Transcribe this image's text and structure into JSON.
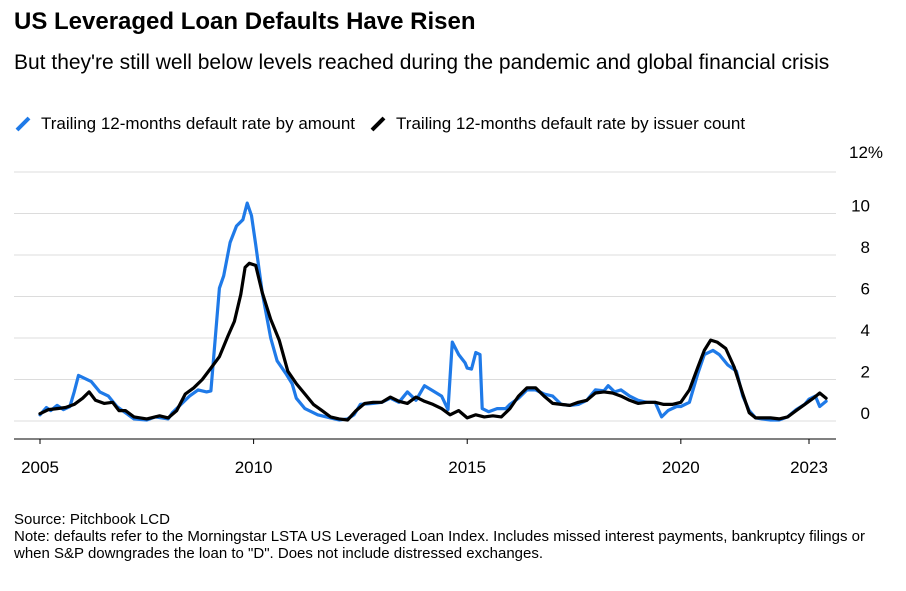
{
  "title": "US Leveraged Loan Defaults Have Risen",
  "subtitle": "But they're still well below levels reached during the pandemic and global financial crisis",
  "legend": [
    {
      "label": "Trailing 12-months default rate by amount",
      "color": "#1f7ae8"
    },
    {
      "label": "Trailing 12-months default rate by issuer count",
      "color": "#000000"
    }
  ],
  "footer": {
    "source": "Source: Pitchbook LCD",
    "note": "Note: defaults refer to the Morningstar LSTA US Leveraged Loan Index. Includes missed interest payments, bankruptcy filings or when S&P downgrades the loan to \"D\". Does not include distressed exchanges."
  },
  "chart_data": {
    "type": "line",
    "title": "US Leveraged Loan Defaults Have Risen",
    "subtitle": "But they're still well below levels reached during the pandemic and global financial crisis",
    "x_range": [
      2005,
      2023.7
    ],
    "ylim": [
      0,
      12
    ],
    "y_ticks": [
      {
        "value": 0,
        "label": "0"
      },
      {
        "value": 2,
        "label": "2"
      },
      {
        "value": 4,
        "label": "4"
      },
      {
        "value": 6,
        "label": "6"
      },
      {
        "value": 8,
        "label": "8"
      },
      {
        "value": 10,
        "label": "10"
      },
      {
        "value": 12,
        "label": "12%"
      }
    ],
    "x_ticks": [
      {
        "value": 2005,
        "label": "2005"
      },
      {
        "value": 2010,
        "label": "2010"
      },
      {
        "value": 2015,
        "label": "2015"
      },
      {
        "value": 2020,
        "label": "2020"
      },
      {
        "value": 2023,
        "label": "2023"
      }
    ],
    "grid": "horizontal",
    "legend_position": "top-left",
    "series": [
      {
        "name": "Trailing 12-months default rate by amount",
        "color": "#1f7ae8",
        "points": [
          [
            2005.0,
            0.3
          ],
          [
            2005.15,
            0.65
          ],
          [
            2005.25,
            0.5
          ],
          [
            2005.4,
            0.75
          ],
          [
            2005.55,
            0.55
          ],
          [
            2005.7,
            0.7
          ],
          [
            2005.8,
            1.4
          ],
          [
            2005.9,
            2.2
          ],
          [
            2006.0,
            2.1
          ],
          [
            2006.2,
            1.9
          ],
          [
            2006.4,
            1.4
          ],
          [
            2006.6,
            1.2
          ],
          [
            2006.8,
            0.7
          ],
          [
            2007.0,
            0.4
          ],
          [
            2007.2,
            0.1
          ],
          [
            2007.5,
            0.05
          ],
          [
            2007.7,
            0.2
          ],
          [
            2008.0,
            0.1
          ],
          [
            2008.1,
            0.4
          ],
          [
            2008.3,
            0.8
          ],
          [
            2008.5,
            1.2
          ],
          [
            2008.7,
            1.5
          ],
          [
            2008.9,
            1.4
          ],
          [
            2009.0,
            1.45
          ],
          [
            2009.2,
            6.4
          ],
          [
            2009.3,
            7.0
          ],
          [
            2009.45,
            8.6
          ],
          [
            2009.6,
            9.4
          ],
          [
            2009.75,
            9.7
          ],
          [
            2009.85,
            10.5
          ],
          [
            2009.95,
            9.9
          ],
          [
            2010.05,
            8.5
          ],
          [
            2010.2,
            6.2
          ],
          [
            2010.4,
            4.0
          ],
          [
            2010.55,
            2.9
          ],
          [
            2010.75,
            2.3
          ],
          [
            2010.9,
            1.8
          ],
          [
            2011.0,
            1.1
          ],
          [
            2011.2,
            0.6
          ],
          [
            2011.5,
            0.3
          ],
          [
            2011.8,
            0.15
          ],
          [
            2012.0,
            0.05
          ],
          [
            2012.2,
            0.1
          ],
          [
            2012.35,
            0.3
          ],
          [
            2012.5,
            0.8
          ],
          [
            2012.8,
            0.85
          ],
          [
            2013.0,
            0.9
          ],
          [
            2013.2,
            1.1
          ],
          [
            2013.4,
            0.9
          ],
          [
            2013.6,
            1.4
          ],
          [
            2013.8,
            1.0
          ],
          [
            2014.0,
            1.7
          ],
          [
            2014.2,
            1.45
          ],
          [
            2014.4,
            1.2
          ],
          [
            2014.55,
            0.55
          ],
          [
            2014.65,
            3.8
          ],
          [
            2014.8,
            3.2
          ],
          [
            2014.95,
            2.8
          ],
          [
            2015.0,
            2.55
          ],
          [
            2015.1,
            2.5
          ],
          [
            2015.2,
            3.3
          ],
          [
            2015.3,
            3.2
          ],
          [
            2015.35,
            0.6
          ],
          [
            2015.5,
            0.45
          ],
          [
            2015.7,
            0.6
          ],
          [
            2015.9,
            0.6
          ],
          [
            2016.0,
            0.8
          ],
          [
            2016.2,
            1.1
          ],
          [
            2016.4,
            1.5
          ],
          [
            2016.6,
            1.5
          ],
          [
            2016.8,
            1.3
          ],
          [
            2017.0,
            1.2
          ],
          [
            2017.2,
            0.8
          ],
          [
            2017.4,
            0.75
          ],
          [
            2017.6,
            0.8
          ],
          [
            2017.8,
            1.0
          ],
          [
            2018.0,
            1.5
          ],
          [
            2018.2,
            1.45
          ],
          [
            2018.3,
            1.7
          ],
          [
            2018.45,
            1.4
          ],
          [
            2018.6,
            1.5
          ],
          [
            2018.8,
            1.2
          ],
          [
            2019.0,
            1.0
          ],
          [
            2019.2,
            0.9
          ],
          [
            2019.4,
            0.9
          ],
          [
            2019.55,
            0.2
          ],
          [
            2019.7,
            0.5
          ],
          [
            2019.9,
            0.7
          ],
          [
            2020.0,
            0.7
          ],
          [
            2020.2,
            0.9
          ],
          [
            2020.4,
            2.3
          ],
          [
            2020.55,
            3.2
          ],
          [
            2020.75,
            3.4
          ],
          [
            2020.9,
            3.2
          ],
          [
            2021.1,
            2.7
          ],
          [
            2021.3,
            2.4
          ],
          [
            2021.45,
            1.2
          ],
          [
            2021.6,
            0.5
          ],
          [
            2021.75,
            0.15
          ],
          [
            2021.9,
            0.1
          ],
          [
            2022.1,
            0.05
          ],
          [
            2022.3,
            0.05
          ],
          [
            2022.5,
            0.2
          ],
          [
            2022.7,
            0.55
          ],
          [
            2022.9,
            0.8
          ],
          [
            2023.0,
            1.05
          ],
          [
            2023.15,
            1.2
          ],
          [
            2023.25,
            0.7
          ],
          [
            2023.4,
            0.95
          ]
        ]
      },
      {
        "name": "Trailing 12-months default rate by issuer count",
        "color": "#000000",
        "points": [
          [
            2005.0,
            0.35
          ],
          [
            2005.2,
            0.55
          ],
          [
            2005.4,
            0.6
          ],
          [
            2005.6,
            0.65
          ],
          [
            2005.8,
            0.8
          ],
          [
            2006.0,
            1.1
          ],
          [
            2006.15,
            1.4
          ],
          [
            2006.3,
            1.0
          ],
          [
            2006.5,
            0.85
          ],
          [
            2006.7,
            0.9
          ],
          [
            2006.85,
            0.5
          ],
          [
            2007.0,
            0.5
          ],
          [
            2007.2,
            0.2
          ],
          [
            2007.5,
            0.1
          ],
          [
            2007.8,
            0.25
          ],
          [
            2008.0,
            0.15
          ],
          [
            2008.2,
            0.5
          ],
          [
            2008.4,
            1.3
          ],
          [
            2008.6,
            1.6
          ],
          [
            2008.8,
            2.0
          ],
          [
            2009.0,
            2.55
          ],
          [
            2009.2,
            3.1
          ],
          [
            2009.4,
            4.1
          ],
          [
            2009.55,
            4.8
          ],
          [
            2009.7,
            6.1
          ],
          [
            2009.8,
            7.4
          ],
          [
            2009.9,
            7.6
          ],
          [
            2010.05,
            7.5
          ],
          [
            2010.2,
            6.2
          ],
          [
            2010.4,
            4.9
          ],
          [
            2010.6,
            3.9
          ],
          [
            2010.8,
            2.4
          ],
          [
            2011.0,
            1.8
          ],
          [
            2011.2,
            1.3
          ],
          [
            2011.4,
            0.8
          ],
          [
            2011.6,
            0.5
          ],
          [
            2011.8,
            0.2
          ],
          [
            2012.0,
            0.1
          ],
          [
            2012.2,
            0.05
          ],
          [
            2012.4,
            0.5
          ],
          [
            2012.6,
            0.85
          ],
          [
            2012.8,
            0.9
          ],
          [
            2013.0,
            0.9
          ],
          [
            2013.2,
            1.15
          ],
          [
            2013.4,
            0.95
          ],
          [
            2013.6,
            0.85
          ],
          [
            2013.8,
            1.15
          ],
          [
            2014.0,
            0.95
          ],
          [
            2014.2,
            0.8
          ],
          [
            2014.4,
            0.6
          ],
          [
            2014.6,
            0.3
          ],
          [
            2014.8,
            0.5
          ],
          [
            2015.0,
            0.15
          ],
          [
            2015.2,
            0.3
          ],
          [
            2015.4,
            0.2
          ],
          [
            2015.6,
            0.25
          ],
          [
            2015.8,
            0.2
          ],
          [
            2016.0,
            0.6
          ],
          [
            2016.2,
            1.2
          ],
          [
            2016.4,
            1.6
          ],
          [
            2016.6,
            1.6
          ],
          [
            2016.8,
            1.2
          ],
          [
            2017.0,
            0.85
          ],
          [
            2017.2,
            0.8
          ],
          [
            2017.4,
            0.75
          ],
          [
            2017.6,
            0.9
          ],
          [
            2017.8,
            1.0
          ],
          [
            2018.0,
            1.35
          ],
          [
            2018.2,
            1.4
          ],
          [
            2018.4,
            1.35
          ],
          [
            2018.6,
            1.2
          ],
          [
            2018.8,
            1.0
          ],
          [
            2019.0,
            0.85
          ],
          [
            2019.2,
            0.9
          ],
          [
            2019.4,
            0.9
          ],
          [
            2019.6,
            0.8
          ],
          [
            2019.8,
            0.8
          ],
          [
            2020.0,
            0.9
          ],
          [
            2020.2,
            1.5
          ],
          [
            2020.4,
            2.6
          ],
          [
            2020.55,
            3.4
          ],
          [
            2020.7,
            3.9
          ],
          [
            2020.85,
            3.8
          ],
          [
            2021.05,
            3.5
          ],
          [
            2021.25,
            2.6
          ],
          [
            2021.45,
            1.3
          ],
          [
            2021.6,
            0.4
          ],
          [
            2021.75,
            0.15
          ],
          [
            2021.9,
            0.15
          ],
          [
            2022.1,
            0.15
          ],
          [
            2022.3,
            0.1
          ],
          [
            2022.5,
            0.2
          ],
          [
            2022.7,
            0.5
          ],
          [
            2022.9,
            0.8
          ],
          [
            2023.1,
            1.1
          ],
          [
            2023.25,
            1.35
          ],
          [
            2023.4,
            1.1
          ]
        ]
      }
    ]
  }
}
